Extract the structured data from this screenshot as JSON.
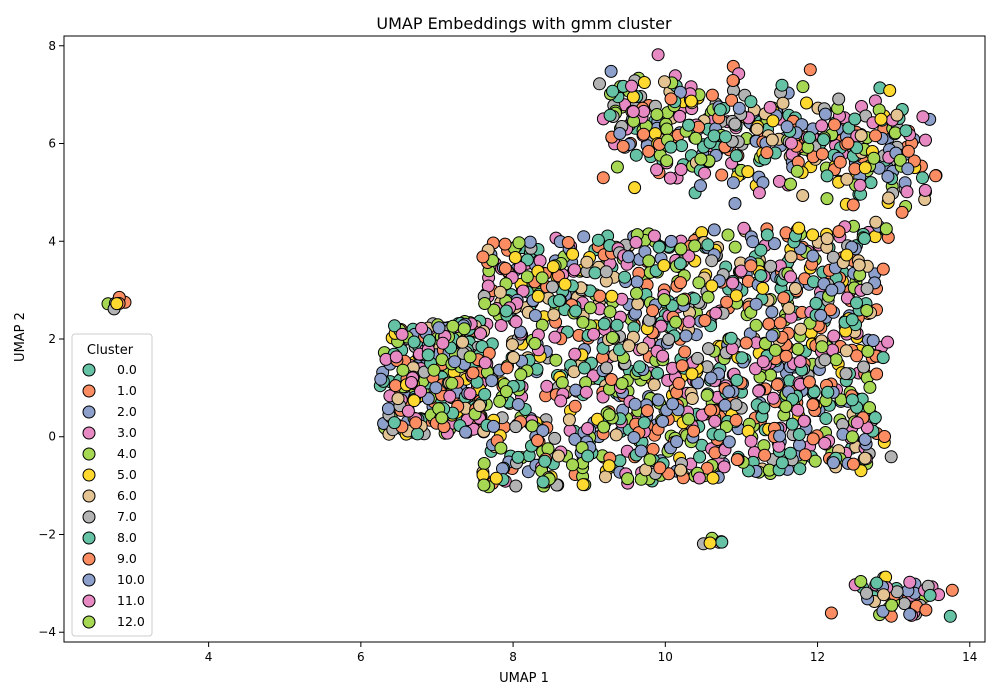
{
  "chart_data": {
    "type": "scatter",
    "title": "UMAP Embeddings with gmm cluster",
    "xlabel": "UMAP 1",
    "ylabel": "UMAP 2",
    "xlim": [
      2.1,
      14.2
    ],
    "ylim": [
      -4.2,
      8.2
    ],
    "xticks": [
      4,
      6,
      8,
      10,
      12,
      14
    ],
    "yticks": [
      -4,
      -2,
      0,
      2,
      4,
      6,
      8
    ],
    "grid": false,
    "legend": {
      "title": "Cluster",
      "placement": "center-left",
      "entries": [
        "0.0",
        "1.0",
        "2.0",
        "3.0",
        "4.0",
        "5.0",
        "6.0",
        "7.0",
        "8.0",
        "9.0",
        "10.0",
        "11.0",
        "12.0"
      ]
    },
    "colors": [
      "#66c2a5",
      "#fc8d62",
      "#8da0cb",
      "#e78ac3",
      "#a6d854",
      "#ffd92f",
      "#e5c494",
      "#b3b3b3",
      "#66c2a5",
      "#fc8d62",
      "#8da0cb",
      "#e78ac3",
      "#a6d854"
    ],
    "marker_edge_color": "#000000",
    "regions": [
      {
        "name": "main-cluster",
        "center": [
          9.6,
          1.6
        ],
        "extent": [
          3.4,
          3.0
        ],
        "count": 1600
      },
      {
        "name": "upper-cluster",
        "center": [
          11.3,
          5.9
        ],
        "extent": [
          2.2,
          1.5
        ],
        "count": 450
      },
      {
        "name": "left-outlier",
        "center": [
          2.8,
          2.7
        ],
        "extent": [
          0.12,
          0.07
        ],
        "count": 7
      },
      {
        "name": "lower-right-cluster",
        "center": [
          13.1,
          -3.3
        ],
        "extent": [
          0.45,
          0.3
        ],
        "count": 60
      },
      {
        "name": "small-group",
        "center": [
          10.6,
          -2.15
        ],
        "extent": [
          0.2,
          0.06
        ],
        "count": 6
      }
    ]
  }
}
